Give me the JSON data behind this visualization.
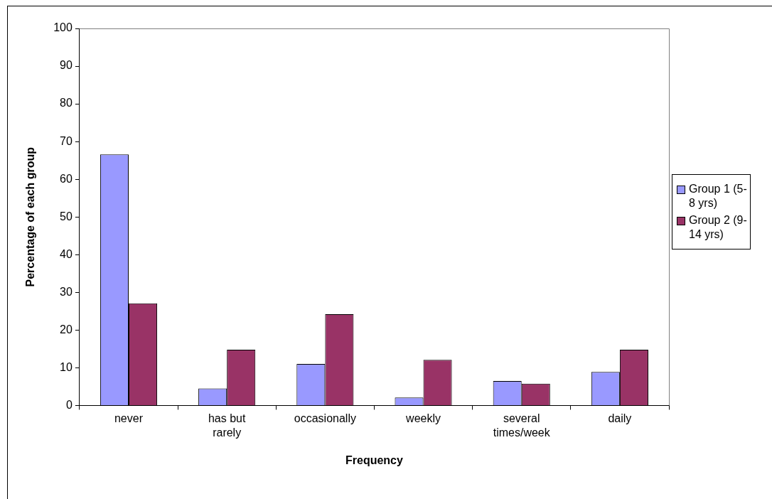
{
  "chart_data": {
    "type": "bar",
    "xlabel": "Frequency",
    "ylabel": "Percentage of each group",
    "categories": [
      "never",
      "has but rarely",
      "occasionally",
      "weekly",
      "several times/week",
      "daily"
    ],
    "series": [
      {
        "name": "Group 1 (5-8 yrs)",
        "color": "#9999ff",
        "values": [
          66.6,
          4.5,
          11.0,
          2.1,
          6.5,
          8.9
        ]
      },
      {
        "name": "Group 2 (9-14 yrs)",
        "color": "#993366",
        "values": [
          27.1,
          14.8,
          24.2,
          12.1,
          5.8,
          14.8
        ]
      }
    ],
    "ylim": [
      0,
      100
    ],
    "yticks": [
      0,
      10,
      20,
      30,
      40,
      50,
      60,
      70,
      80,
      90,
      100
    ],
    "grid": false,
    "legend": "right"
  }
}
